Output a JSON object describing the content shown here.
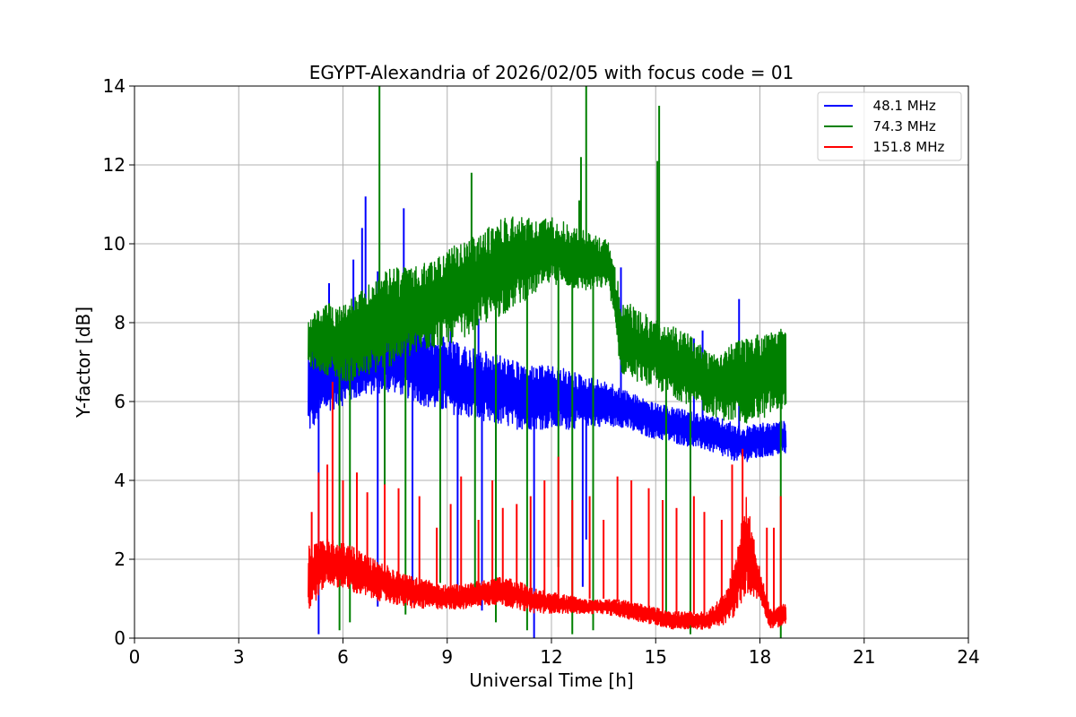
{
  "colors": {
    "blue": "#0000ff",
    "green": "#008000",
    "red": "#ff0000",
    "grid": "#b0b0b0",
    "frame": "#000000",
    "legend_border": "#cccccc"
  },
  "chart_data": {
    "type": "line",
    "title": "EGYPT-Alexandria of 2026/02/05 with focus code = 01",
    "xlabel": "Universal Time [h]",
    "ylabel": "Y-factor [dB]",
    "xlim": [
      0,
      24
    ],
    "ylim": [
      0,
      14
    ],
    "grid": true,
    "legend_position": "top-right",
    "xticks": [
      0,
      3,
      6,
      9,
      12,
      15,
      18,
      21,
      24
    ],
    "yticks": [
      0,
      2,
      4,
      6,
      8,
      10,
      12,
      14
    ],
    "series": [
      {
        "name": "  48.1 MHz",
        "color": "#0000ff",
        "band": {
          "x": [
            5.0,
            5.5,
            6.0,
            6.5,
            7.0,
            7.5,
            8.0,
            8.5,
            9.0,
            9.5,
            10.0,
            10.5,
            11.0,
            11.5,
            12.0,
            12.5,
            13.0,
            13.5,
            14.0,
            14.5,
            15.0,
            15.5,
            16.0,
            16.5,
            17.0,
            17.5,
            18.0,
            18.5,
            18.75
          ],
          "lower": [
            5.0,
            5.6,
            5.8,
            6.0,
            6.1,
            6.1,
            5.9,
            5.7,
            5.6,
            5.5,
            5.3,
            5.3,
            5.2,
            5.2,
            5.2,
            5.2,
            5.3,
            5.3,
            5.3,
            5.1,
            5.0,
            4.9,
            4.8,
            4.7,
            4.5,
            4.4,
            4.5,
            4.6,
            4.6
          ],
          "upper": [
            7.6,
            7.9,
            7.8,
            8.0,
            8.1,
            8.4,
            8.3,
            7.9,
            7.7,
            7.5,
            7.4,
            7.3,
            7.1,
            7.0,
            7.0,
            6.9,
            6.7,
            6.6,
            6.4,
            6.2,
            6.0,
            5.9,
            5.8,
            5.7,
            5.6,
            5.4,
            5.5,
            5.5,
            5.6
          ]
        },
        "spikes": [
          {
            "x": 5.6,
            "y": 9.0
          },
          {
            "x": 6.3,
            "y": 9.6
          },
          {
            "x": 6.55,
            "y": 10.4
          },
          {
            "x": 6.65,
            "y": 11.2
          },
          {
            "x": 7.0,
            "y": 9.3
          },
          {
            "x": 7.75,
            "y": 10.9
          },
          {
            "x": 9.1,
            "y": 7.9
          },
          {
            "x": 9.9,
            "y": 8.1
          },
          {
            "x": 14.0,
            "y": 9.4
          },
          {
            "x": 16.35,
            "y": 7.8
          },
          {
            "x": 16.1,
            "y": 7.6
          },
          {
            "x": 17.4,
            "y": 8.6
          }
        ],
        "dips": [
          {
            "x": 5.3,
            "y": 0.1
          },
          {
            "x": 7.0,
            "y": 0.8
          },
          {
            "x": 8.0,
            "y": 0.9
          },
          {
            "x": 9.3,
            "y": 0.9
          },
          {
            "x": 10.0,
            "y": 0.7
          },
          {
            "x": 11.5,
            "y": 0.0
          },
          {
            "x": 12.9,
            "y": 1.3
          },
          {
            "x": 13.0,
            "y": 2.5
          }
        ]
      },
      {
        "name": "  74.3 MHz",
        "color": "#008000",
        "band": {
          "x": [
            5.0,
            5.5,
            6.0,
            6.5,
            7.0,
            7.5,
            8.0,
            8.5,
            9.0,
            9.5,
            10.0,
            10.5,
            11.0,
            11.5,
            12.0,
            12.5,
            13.0,
            13.5,
            13.65,
            14.0,
            14.5,
            15.0,
            15.5,
            16.0,
            16.5,
            17.0,
            17.5,
            18.0,
            18.5,
            18.75
          ],
          "lower": [
            6.8,
            6.6,
            6.4,
            6.4,
            6.6,
            6.8,
            7.0,
            7.2,
            7.3,
            7.5,
            7.8,
            8.0,
            8.3,
            8.6,
            8.9,
            8.8,
            8.7,
            8.8,
            8.9,
            6.6,
            6.4,
            6.2,
            6.0,
            5.8,
            5.6,
            5.4,
            5.3,
            5.4,
            5.6,
            5.8
          ],
          "upper": [
            8.2,
            8.6,
            8.6,
            8.9,
            9.3,
            9.6,
            9.5,
            9.7,
            10.0,
            10.2,
            10.4,
            10.8,
            10.9,
            10.7,
            10.8,
            10.6,
            10.4,
            10.2,
            10.2,
            8.8,
            8.4,
            8.2,
            8.0,
            7.8,
            7.4,
            7.5,
            7.7,
            7.9,
            7.9,
            8.1
          ]
        },
        "spikes": [
          {
            "x": 7.05,
            "y": 14.0
          },
          {
            "x": 9.7,
            "y": 11.8
          },
          {
            "x": 10.9,
            "y": 10.3
          },
          {
            "x": 12.8,
            "y": 11.1
          },
          {
            "x": 12.85,
            "y": 12.2
          },
          {
            "x": 13.0,
            "y": 14.0
          },
          {
            "x": 15.1,
            "y": 13.5
          },
          {
            "x": 15.05,
            "y": 12.1
          }
        ],
        "dips": [
          {
            "x": 5.9,
            "y": 0.2
          },
          {
            "x": 6.2,
            "y": 0.4
          },
          {
            "x": 7.2,
            "y": 1.2
          },
          {
            "x": 7.8,
            "y": 0.6
          },
          {
            "x": 8.8,
            "y": 1.4
          },
          {
            "x": 9.8,
            "y": 1.1
          },
          {
            "x": 10.4,
            "y": 0.4
          },
          {
            "x": 11.3,
            "y": 0.2
          },
          {
            "x": 12.2,
            "y": 1.8
          },
          {
            "x": 12.6,
            "y": 0.1
          },
          {
            "x": 13.2,
            "y": 0.2
          },
          {
            "x": 15.3,
            "y": 0.3
          },
          {
            "x": 16.0,
            "y": 0.1
          },
          {
            "x": 18.6,
            "y": 0.0
          }
        ]
      },
      {
        "name": "  151.8 MHz",
        "color": "#ff0000",
        "band": {
          "x": [
            5.0,
            5.5,
            6.0,
            6.5,
            7.0,
            7.5,
            8.0,
            8.5,
            9.0,
            9.5,
            10.0,
            10.5,
            11.0,
            11.5,
            12.0,
            12.5,
            13.0,
            13.5,
            14.0,
            14.5,
            15.0,
            15.5,
            16.0,
            16.5,
            17.0,
            17.3,
            17.6,
            18.0,
            18.3,
            18.75
          ],
          "lower": [
            0.5,
            1.3,
            1.2,
            1.0,
            0.9,
            0.8,
            0.7,
            0.7,
            0.7,
            0.7,
            0.8,
            0.8,
            0.7,
            0.6,
            0.6,
            0.6,
            0.6,
            0.6,
            0.5,
            0.4,
            0.3,
            0.2,
            0.2,
            0.2,
            0.3,
            0.5,
            1.0,
            0.9,
            0.2,
            0.3
          ],
          "upper": [
            2.6,
            2.6,
            2.5,
            2.3,
            2.0,
            1.8,
            1.6,
            1.5,
            1.4,
            1.4,
            1.5,
            1.6,
            1.5,
            1.3,
            1.2,
            1.1,
            1.0,
            1.0,
            1.0,
            0.9,
            0.8,
            0.7,
            0.7,
            0.7,
            1.2,
            2.0,
            3.8,
            1.8,
            0.8,
            0.9
          ]
        },
        "spikes": [
          {
            "x": 5.1,
            "y": 3.2
          },
          {
            "x": 5.3,
            "y": 4.2
          },
          {
            "x": 5.55,
            "y": 4.4
          },
          {
            "x": 5.7,
            "y": 6.5
          },
          {
            "x": 6.0,
            "y": 4.0
          },
          {
            "x": 6.4,
            "y": 4.2
          },
          {
            "x": 6.7,
            "y": 3.7
          },
          {
            "x": 7.2,
            "y": 3.9
          },
          {
            "x": 7.6,
            "y": 3.8
          },
          {
            "x": 8.2,
            "y": 3.6
          },
          {
            "x": 8.7,
            "y": 2.8
          },
          {
            "x": 9.1,
            "y": 3.4
          },
          {
            "x": 9.4,
            "y": 4.1
          },
          {
            "x": 9.9,
            "y": 3.0
          },
          {
            "x": 10.3,
            "y": 4.0
          },
          {
            "x": 10.6,
            "y": 3.3
          },
          {
            "x": 11.0,
            "y": 3.4
          },
          {
            "x": 11.4,
            "y": 3.6
          },
          {
            "x": 11.8,
            "y": 4.0
          },
          {
            "x": 12.2,
            "y": 4.6
          },
          {
            "x": 12.6,
            "y": 3.5
          },
          {
            "x": 13.1,
            "y": 3.6
          },
          {
            "x": 13.5,
            "y": 3.0
          },
          {
            "x": 13.9,
            "y": 4.1
          },
          {
            "x": 14.3,
            "y": 4.0
          },
          {
            "x": 14.8,
            "y": 3.8
          },
          {
            "x": 15.2,
            "y": 3.5
          },
          {
            "x": 15.6,
            "y": 3.3
          },
          {
            "x": 16.1,
            "y": 3.6
          },
          {
            "x": 16.4,
            "y": 3.2
          },
          {
            "x": 16.9,
            "y": 3.0
          },
          {
            "x": 17.2,
            "y": 4.4
          },
          {
            "x": 17.5,
            "y": 4.8
          },
          {
            "x": 18.2,
            "y": 2.8
          },
          {
            "x": 18.4,
            "y": 2.8
          },
          {
            "x": 18.6,
            "y": 3.6
          }
        ],
        "dips": []
      }
    ]
  }
}
